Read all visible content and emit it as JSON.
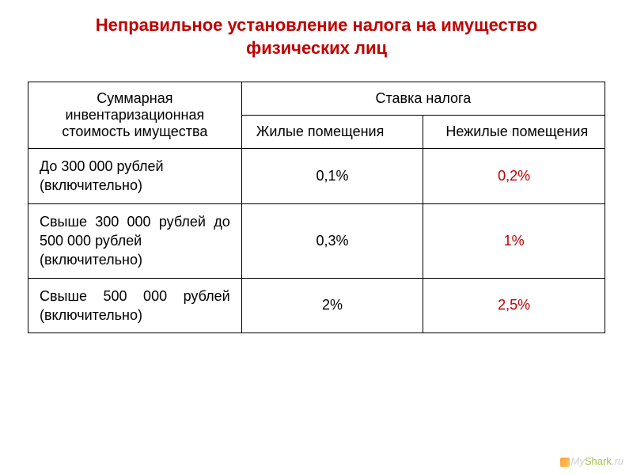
{
  "title": "Неправильное установление налога  на имущество физических лиц",
  "table": {
    "header": {
      "col1": "Суммарная инвентаризационная стоимость имущества",
      "col2_merged": "Ставка налога",
      "sub_col2": "Жилые помещения",
      "sub_col3": "Нежилые помещения"
    },
    "rows": [
      {
        "range": "До 300 000 рублей (включительно)",
        "residential": "0,1%",
        "nonresidential": "0,2%"
      },
      {
        "range_line1": "Свыше 300 000 рублей до",
        "range_line2": "500 000 рублей",
        "range_line3": " (включительно)",
        "residential": "0,3%",
        "nonresidential": "1%"
      },
      {
        "range_line1": "Свыше 500 000 рублей",
        "range_line2": "(включительно)",
        "residential": "2%",
        "nonresidential": "2,5%"
      }
    ]
  },
  "logo": {
    "my": "My",
    "shark": "Shark",
    "ru": ".ru"
  },
  "styling": {
    "title_color": "#c00000",
    "value_red_color": "#c00000",
    "border_color": "#000000",
    "background_color": "#ffffff",
    "title_fontsize": 22,
    "cell_fontsize": 18,
    "col1_width_percent": 37
  }
}
